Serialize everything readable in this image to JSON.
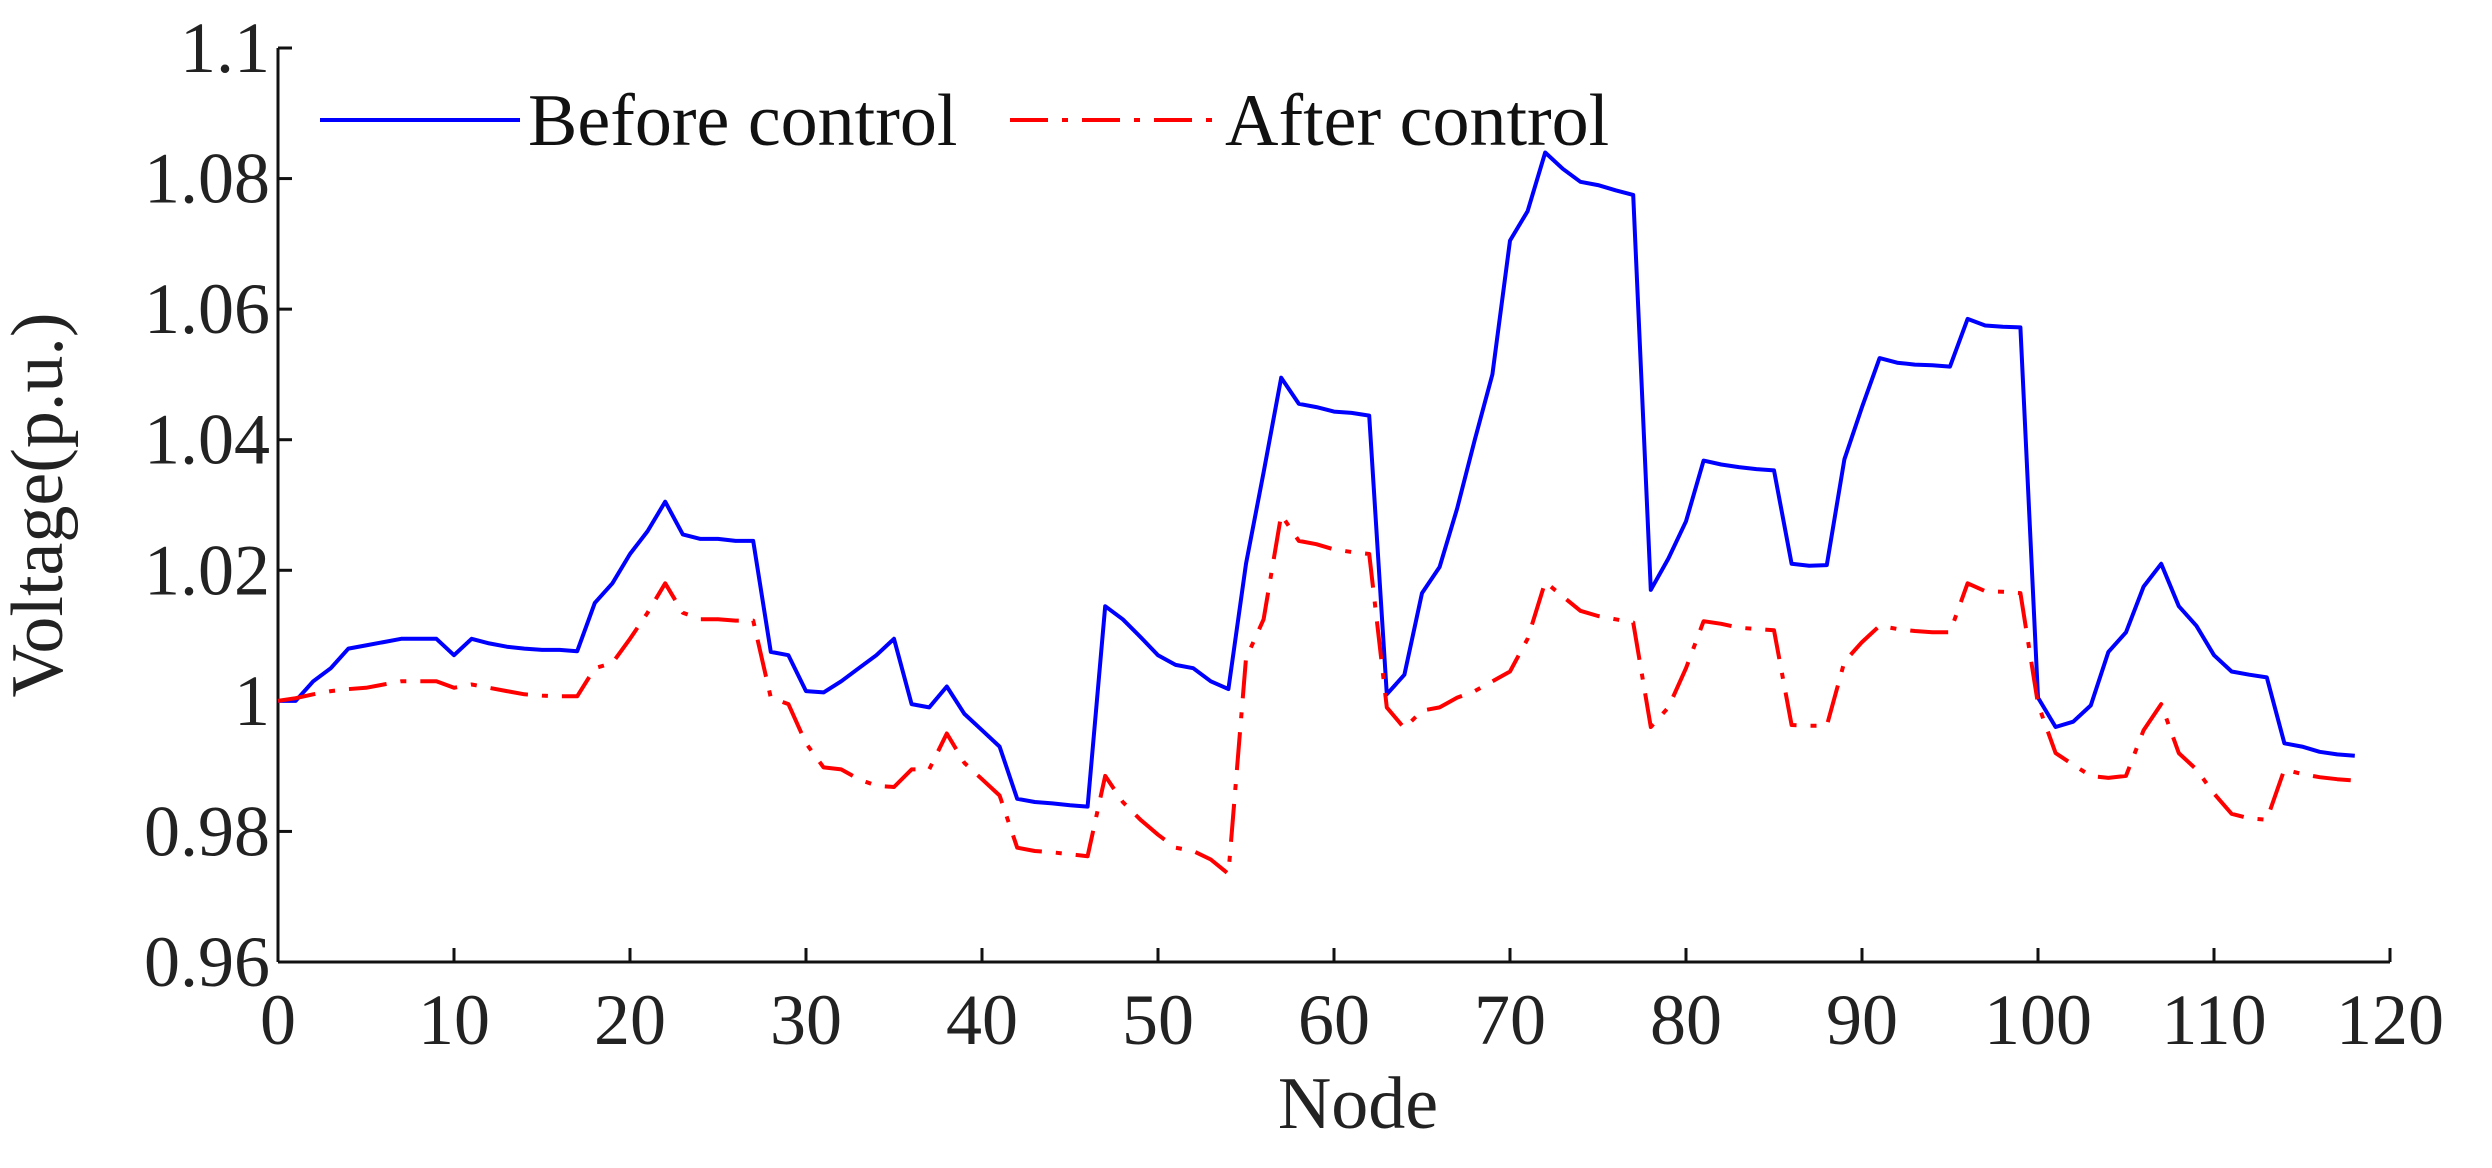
{
  "chart_data": {
    "type": "line",
    "title": "",
    "xlabel": "Node",
    "ylabel": "Voltage(p.u.)",
    "xlim": [
      0,
      120
    ],
    "ylim": [
      0.96,
      1.1
    ],
    "xticks": [
      "0",
      "10",
      "20",
      "30",
      "40",
      "50",
      "60",
      "70",
      "80",
      "90",
      "100",
      "110",
      "120"
    ],
    "yticks": [
      "0.96",
      "0.98",
      "1",
      "1.02",
      "1.04",
      "1.06",
      "1.08",
      "1.1"
    ],
    "grid": false,
    "legend_position": "top-left",
    "series": [
      {
        "name": "Before control",
        "color": "#0000ff",
        "dash": "solid",
        "x": [
          0,
          1,
          2,
          3,
          4,
          5,
          6,
          7,
          8,
          9,
          10,
          11,
          12,
          13,
          14,
          15,
          16,
          17,
          18,
          19,
          20,
          21,
          22,
          23,
          24,
          25,
          26,
          27,
          28,
          29,
          30,
          31,
          32,
          33,
          34,
          35,
          36,
          37,
          38,
          39,
          40,
          41,
          42,
          43,
          44,
          45,
          46,
          47,
          48,
          49,
          50,
          51,
          52,
          53,
          54,
          55,
          56,
          57,
          58,
          59,
          60,
          61,
          62,
          63,
          64,
          65,
          66,
          67,
          68,
          69,
          70,
          71,
          72,
          73,
          74,
          75,
          76,
          77,
          78,
          79,
          80,
          81,
          82,
          83,
          84,
          85,
          86,
          87,
          88,
          89,
          90,
          91,
          92,
          93,
          94,
          95,
          96,
          97,
          98,
          99,
          100,
          101,
          102,
          103,
          104,
          105,
          106,
          107,
          108,
          109,
          110,
          111,
          112,
          113,
          114,
          115,
          116,
          117,
          118
        ],
        "y": [
          1.0,
          1.0,
          1.003,
          1.005,
          1.008,
          1.0085,
          1.009,
          1.0095,
          1.0095,
          1.0095,
          1.007,
          1.0095,
          1.0088,
          1.0083,
          1.008,
          1.0078,
          1.0078,
          1.0076,
          1.015,
          1.018,
          1.0225,
          1.026,
          1.0305,
          1.0255,
          1.0248,
          1.0248,
          1.0245,
          1.0245,
          1.0075,
          1.007,
          1.0015,
          1.0013,
          1.003,
          1.005,
          1.007,
          1.0095,
          0.9995,
          0.999,
          1.0022,
          0.998,
          0.9955,
          0.993,
          0.985,
          0.9845,
          0.9843,
          0.984,
          0.9838,
          1.0145,
          1.0125,
          1.0098,
          1.007,
          1.0055,
          1.005,
          1.003,
          1.0018,
          1.021,
          1.035,
          1.0495,
          1.0455,
          1.045,
          1.0443,
          1.0441,
          1.0437,
          1.001,
          1.004,
          1.0165,
          1.0205,
          1.0295,
          1.04,
          1.05,
          1.0705,
          1.075,
          1.084,
          1.0815,
          1.0795,
          1.079,
          1.0782,
          1.0775,
          1.017,
          1.0218,
          1.0275,
          1.0368,
          1.0362,
          1.0358,
          1.0355,
          1.0353,
          1.021,
          1.0207,
          1.0208,
          1.037,
          1.045,
          1.0525,
          1.0518,
          1.0515,
          1.0514,
          1.0512,
          1.0585,
          1.0575,
          1.0573,
          1.0572,
          1.0005,
          0.996,
          0.9968,
          0.9993,
          1.0075,
          1.0105,
          1.0175,
          1.021,
          1.0145,
          1.0115,
          1.007,
          1.0045,
          1.004,
          1.0036,
          0.9935,
          0.993,
          0.9922,
          0.9918,
          0.9916
        ]
      },
      {
        "name": "After control",
        "color": "#ff0000",
        "dash": "dash-dot",
        "x": [
          0,
          1,
          2,
          3,
          4,
          5,
          6,
          7,
          8,
          9,
          10,
          11,
          12,
          13,
          14,
          15,
          16,
          17,
          18,
          19,
          20,
          21,
          22,
          23,
          24,
          25,
          26,
          27,
          28,
          29,
          30,
          31,
          32,
          33,
          34,
          35,
          36,
          37,
          38,
          39,
          40,
          41,
          42,
          43,
          44,
          45,
          46,
          47,
          48,
          49,
          50,
          51,
          52,
          53,
          54,
          55,
          56,
          57,
          58,
          59,
          60,
          61,
          62,
          63,
          64,
          65,
          66,
          67,
          68,
          69,
          70,
          71,
          72,
          73,
          74,
          75,
          76,
          77,
          78,
          79,
          80,
          81,
          82,
          83,
          84,
          85,
          86,
          87,
          88,
          89,
          90,
          91,
          92,
          93,
          94,
          95,
          96,
          97,
          98,
          99,
          100,
          101,
          102,
          103,
          104,
          105,
          106,
          107,
          108,
          109,
          110,
          111,
          112,
          113,
          114,
          115,
          116,
          117,
          118
        ],
        "y": [
          1.0,
          1.0004,
          1.001,
          1.0015,
          1.0018,
          1.002,
          1.0025,
          1.003,
          1.003,
          1.003,
          1.002,
          1.0025,
          1.002,
          1.0015,
          1.001,
          1.0008,
          1.0007,
          1.0007,
          1.005,
          1.0058,
          1.0095,
          1.0135,
          1.018,
          1.0135,
          1.0125,
          1.0125,
          1.0123,
          1.0123,
          1.0005,
          0.9995,
          0.9935,
          0.9898,
          0.9895,
          0.988,
          0.987,
          0.9868,
          0.9895,
          0.9895,
          0.995,
          0.9905,
          0.988,
          0.9855,
          0.9775,
          0.977,
          0.9768,
          0.9765,
          0.9762,
          0.9885,
          0.9845,
          0.9818,
          0.9795,
          0.9775,
          0.977,
          0.9757,
          0.9735,
          1.0065,
          1.0125,
          1.0285,
          1.0245,
          1.024,
          1.0232,
          1.0228,
          1.0225,
          0.999,
          0.9958,
          0.9985,
          0.999,
          1.0005,
          1.0015,
          1.003,
          1.0045,
          1.0095,
          1.0182,
          1.016,
          1.0138,
          1.013,
          1.0125,
          1.012,
          0.996,
          0.999,
          1.005,
          1.0122,
          1.0118,
          1.0112,
          1.011,
          1.0108,
          0.9963,
          0.9962,
          0.9962,
          1.006,
          1.009,
          1.0115,
          1.011,
          1.0107,
          1.0105,
          1.0105,
          1.018,
          1.0168,
          1.0167,
          1.0165,
          0.9995,
          0.992,
          0.9902,
          0.9885,
          0.9882,
          0.9885,
          0.9955,
          0.9995,
          0.992,
          0.9895,
          0.9858,
          0.9827,
          0.982,
          0.9818,
          0.9895,
          0.9888,
          0.9883,
          0.988,
          0.9878
        ]
      }
    ]
  }
}
